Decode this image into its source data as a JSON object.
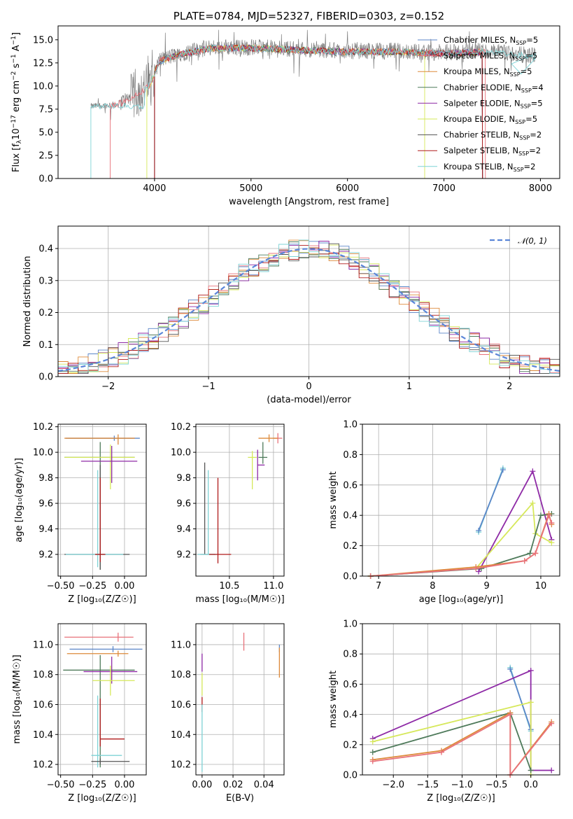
{
  "figure_title": "PLATE=0784, MJD=52327, FIBERID=0303, z=0.152",
  "colors": {
    "chabrier_miles": "#5b86c8",
    "salpeter_miles": "#e8717a",
    "kroupa_miles": "#dd8a3a",
    "chabrier_elodie": "#4e7a5a",
    "salpeter_elodie": "#8e2aa6",
    "kroupa_elodie": "#d6e85a",
    "chabrier_stelib": "#555555",
    "salpeter_stelib": "#b01a1a",
    "kroupa_stelib": "#7fd3d6",
    "data": "#808080",
    "normal": "#5b86d8"
  },
  "chart_data": [
    {
      "id": "spectrum",
      "type": "line",
      "title": "PLATE=0784, MJD=52327, FIBERID=0303, z=0.152",
      "xlabel": "wavelength [Angstrom, rest frame]",
      "ylabel_text": "Flux [f",
      "ylabel_sub": "λ",
      "ylabel_text2": "10",
      "ylabel_sup1": "−17",
      "ylabel_text3": " erg cm",
      "ylabel_sup2": "−2",
      "ylabel_text4": " s",
      "ylabel_sup3": "−1",
      "ylabel_text5": " A",
      "ylabel_sup4": "−1",
      "ylabel_text6": "]",
      "xlim": [
        3000,
        8200
      ],
      "ylim": [
        0,
        16.5
      ],
      "xticks": [
        4000,
        5000,
        6000,
        7000,
        8000
      ],
      "yticks": [
        0.0,
        2.5,
        5.0,
        7.5,
        10.0,
        12.5,
        15.0
      ],
      "ytick_labels": [
        "0.0",
        "2.5",
        "5.0",
        "7.5",
        "10.0",
        "12.5",
        "15.0"
      ],
      "grid": false,
      "legend": "right",
      "legend_entries": [
        {
          "label": "Chabrier MILES, N",
          "sub": "SSP",
          "eq": "=5",
          "color_key": "chabrier_miles"
        },
        {
          "label": "Salpeter MILES, N",
          "sub": "SSP",
          "eq": "=5",
          "color_key": "salpeter_miles"
        },
        {
          "label": "Kroupa MILES, N",
          "sub": "SSP",
          "eq": "=5",
          "color_key": "kroupa_miles"
        },
        {
          "label": "Chabrier ELODIE, N",
          "sub": "SSP",
          "eq": "=4",
          "color_key": "chabrier_elodie"
        },
        {
          "label": "Salpeter ELODIE, N",
          "sub": "SSP",
          "eq": "=5",
          "color_key": "salpeter_elodie"
        },
        {
          "label": "Kroupa ELODIE, N",
          "sub": "SSP",
          "eq": "=5",
          "color_key": "kroupa_elodie"
        },
        {
          "label": "Chabrier STELIB, N",
          "sub": "SSP",
          "eq": "=2",
          "color_key": "chabrier_stelib"
        },
        {
          "label": "Salpeter STELIB, N",
          "sub": "SSP",
          "eq": "=2",
          "color_key": "salpeter_stelib"
        },
        {
          "label": "Kroupa STELIB, N",
          "sub": "SSP",
          "eq": "=2",
          "color_key": "kroupa_stelib"
        }
      ],
      "data_range": [
        3340,
        7950
      ],
      "continuum": [
        [
          3340,
          7.8
        ],
        [
          3600,
          8.0
        ],
        [
          3800,
          9.0
        ],
        [
          3950,
          10.2
        ],
        [
          4050,
          12.8
        ],
        [
          4300,
          13.6
        ],
        [
          4600,
          14.2
        ],
        [
          5000,
          14.2
        ],
        [
          5500,
          14.0
        ],
        [
          6000,
          13.8
        ],
        [
          6500,
          13.8
        ],
        [
          7000,
          13.6
        ],
        [
          7400,
          13.8
        ],
        [
          7900,
          13.3
        ]
      ],
      "model_cutoffs": [
        {
          "color_key": "salpeter_miles",
          "start": 3540,
          "end": 7430
        },
        {
          "color_key": "kroupa_elodie",
          "start": 3920,
          "end": 6800
        },
        {
          "color_key": "kroupa_stelib",
          "start": 3340,
          "end": 7950
        }
      ]
    },
    {
      "id": "residual_hist",
      "type": "histogram",
      "xlabel": "(data-model)/error",
      "ylabel": "Normed distribution",
      "xlim": [
        -2.5,
        2.5
      ],
      "ylim": [
        0,
        0.47
      ],
      "xticks": [
        -2,
        -1,
        0,
        1,
        2
      ],
      "xtick_labels": [
        "−2",
        "−1",
        "0",
        "1",
        "2"
      ],
      "yticks": [
        0.0,
        0.1,
        0.2,
        0.3,
        0.4
      ],
      "ytick_labels": [
        "0.0",
        "0.1",
        "0.2",
        "0.3",
        "0.4"
      ],
      "grid": true,
      "legend": "top-right",
      "legend_label": "𝒩(0, 1)",
      "bin_width": 0.1,
      "bin_start": -2.5
    },
    {
      "id": "age_vs_Z",
      "type": "errorbar",
      "xlabel": "Z [log₁₀(Z/Z☉)]",
      "ylabel": "age  [log₁₀(age/yr)]",
      "xlim": [
        -0.52,
        0.17
      ],
      "ylim": [
        9.03,
        10.22
      ],
      "xticks": [
        -0.5,
        -0.25,
        0.0
      ],
      "xtick_labels": [
        "−0.50",
        "−0.25",
        "0.00"
      ],
      "yticks": [
        9.2,
        9.4,
        9.6,
        9.8,
        10.0,
        10.2
      ],
      "ytick_labels": [
        "9.2",
        "9.4",
        "9.6",
        "9.8",
        "10.0",
        "10.2"
      ],
      "grid": true,
      "points": [
        {
          "color_key": "chabrier_miles",
          "x": -0.08,
          "xerr": [
            0.38,
            0.2
          ],
          "y": 10.11,
          "yerr": [
            0.02,
            0.02
          ]
        },
        {
          "color_key": "kroupa_miles",
          "x": -0.05,
          "xerr": [
            0.42,
            0.13
          ],
          "y": 10.11,
          "yerr": [
            0.05,
            0.03
          ]
        },
        {
          "color_key": "chabrier_elodie",
          "x": -0.19,
          "xerr": [
            0.28,
            0.27
          ],
          "y": 9.96,
          "yerr": [
            0.88,
            0.12
          ]
        },
        {
          "color_key": "kroupa_elodie",
          "x": -0.11,
          "xerr": [
            0.36,
            0.19
          ],
          "y": 9.96,
          "yerr": [
            0.25,
            0.1
          ]
        },
        {
          "color_key": "salpeter_elodie",
          "x": -0.1,
          "xerr": [
            0.24,
            0.2
          ],
          "y": 9.93,
          "yerr": [
            0.17,
            0.12
          ]
        },
        {
          "color_key": "chabrier_stelib",
          "x": -0.19,
          "xerr": [
            0.28,
            0.23
          ],
          "y": 9.2,
          "yerr": [
            0.12,
            0.7
          ]
        },
        {
          "color_key": "kroupa_stelib",
          "x": -0.21,
          "xerr": [
            0.25,
            0.2
          ],
          "y": 9.2,
          "yerr": [
            0.1,
            0.66
          ]
        },
        {
          "color_key": "salpeter_stelib",
          "x": -0.19,
          "xerr": [
            0.04,
            0.04
          ],
          "y": 9.2,
          "yerr": [
            0.06,
            0.6
          ]
        }
      ]
    },
    {
      "id": "age_vs_mass",
      "type": "errorbar",
      "xlabel": "mass [log₁₀(M/M☉)]",
      "xlim": [
        10.12,
        11.12
      ],
      "ylim": [
        9.03,
        10.22
      ],
      "xticks": [
        10.5,
        11.0
      ],
      "xtick_labels": [
        "10.5",
        "11.0"
      ],
      "yticks": [
        9.2,
        9.4,
        9.6,
        9.8,
        10.0,
        10.2
      ],
      "ytick_labels": [
        "9.2",
        "9.4",
        "9.6",
        "9.8",
        "10.0",
        "10.2"
      ],
      "grid": true,
      "points": [
        {
          "color_key": "salpeter_miles",
          "x": 11.05,
          "xerr": [
            0.05,
            0.05
          ],
          "y": 10.11,
          "yerr": [
            0.04,
            0.04
          ]
        },
        {
          "color_key": "kroupa_miles",
          "x": 10.95,
          "xerr": [
            0.12,
            0.1
          ],
          "y": 10.11,
          "yerr": [
            0.03,
            0.03
          ]
        },
        {
          "color_key": "chabrier_elodie",
          "x": 10.88,
          "xerr": [
            0.05,
            0.05
          ],
          "y": 9.96,
          "yerr": [
            0.05,
            0.12
          ]
        },
        {
          "color_key": "kroupa_elodie",
          "x": 10.76,
          "xerr": [
            0.05,
            0.05
          ],
          "y": 9.96,
          "yerr": [
            0.25,
            0.05
          ]
        },
        {
          "color_key": "salpeter_elodie",
          "x": 10.82,
          "xerr": [
            0.0,
            0.08
          ],
          "y": 9.9,
          "yerr": [
            0.12,
            0.12
          ]
        },
        {
          "color_key": "chabrier_stelib",
          "x": 10.22,
          "xerr": [
            0.05,
            0.12
          ],
          "y": 9.2,
          "yerr": [
            0.0,
            0.72
          ]
        },
        {
          "color_key": "kroupa_stelib",
          "x": 10.26,
          "xerr": [
            0.12,
            0.1
          ],
          "y": 9.2,
          "yerr": [
            0.0,
            0.66
          ]
        },
        {
          "color_key": "salpeter_stelib",
          "x": 10.37,
          "xerr": [
            0.1,
            0.15
          ],
          "y": 9.2,
          "yerr": [
            0.07,
            0.6
          ]
        }
      ]
    },
    {
      "id": "massweight_vs_age",
      "type": "line",
      "xlabel": "age  [log₁₀(age/yr)]",
      "ylabel": "mass weight",
      "xlim": [
        6.7,
        10.35
      ],
      "ylim": [
        0,
        1
      ],
      "xticks": [
        7,
        8,
        9,
        10
      ],
      "xtick_labels": [
        "7",
        "8",
        "9",
        "10"
      ],
      "yticks": [
        0.0,
        0.2,
        0.4,
        0.6,
        0.8,
        1.0
      ],
      "ytick_labels": [
        "0.0",
        "0.2",
        "0.4",
        "0.6",
        "0.8",
        "1.0"
      ],
      "grid": true,
      "series": [
        {
          "color_key": "kroupa_stelib",
          "x": [
            8.85,
            9.3
          ],
          "y": [
            0.29,
            0.71
          ]
        },
        {
          "color_key": "chabrier_miles",
          "x": [
            8.85,
            9.3
          ],
          "y": [
            0.3,
            0.7
          ]
        },
        {
          "color_key": "salpeter_elodie",
          "x": [
            8.85,
            9.85,
            10.2
          ],
          "y": [
            0.03,
            0.69,
            0.24
          ]
        },
        {
          "color_key": "kroupa_elodie",
          "x": [
            6.85,
            8.8,
            9.85,
            9.9,
            10.2
          ],
          "y": [
            0.0,
            0.05,
            0.48,
            0.28,
            0.22
          ]
        },
        {
          "color_key": "chabrier_elodie",
          "x": [
            6.85,
            8.9,
            9.8,
            10.0,
            10.2
          ],
          "y": [
            0.0,
            0.05,
            0.15,
            0.4,
            0.41
          ]
        },
        {
          "color_key": "kroupa_miles",
          "x": [
            6.85,
            8.8,
            9.7,
            9.9,
            10.15,
            10.2
          ],
          "y": [
            0.0,
            0.06,
            0.1,
            0.15,
            0.41,
            0.34
          ]
        },
        {
          "color_key": "salpeter_miles",
          "x": [
            6.85,
            8.8,
            9.7,
            9.9,
            10.15,
            10.2
          ],
          "y": [
            0.0,
            0.05,
            0.1,
            0.15,
            0.4,
            0.35
          ]
        }
      ]
    },
    {
      "id": "mass_vs_Z",
      "type": "errorbar",
      "xlabel": "Z [log₁₀(Z/Z☉)]",
      "ylabel": "mass [log₁₀(M/M☉)]",
      "xlim": [
        -0.52,
        0.17
      ],
      "ylim": [
        10.13,
        11.14
      ],
      "xticks": [
        -0.5,
        -0.25,
        0.0
      ],
      "xtick_labels": [
        "−0.50",
        "−0.25",
        "0.00"
      ],
      "yticks": [
        10.2,
        10.4,
        10.6,
        10.8,
        11.0
      ],
      "ytick_labels": [
        "10.2",
        "10.4",
        "10.6",
        "10.8",
        "11.0"
      ],
      "grid": true,
      "points": [
        {
          "color_key": "salpeter_miles",
          "x": -0.05,
          "xerr": [
            0.42,
            0.12
          ],
          "y": 11.05,
          "yerr": [
            0.03,
            0.03
          ]
        },
        {
          "color_key": "chabrier_miles",
          "x": -0.09,
          "xerr": [
            0.34,
            0.23
          ],
          "y": 10.97,
          "yerr": [
            0.02,
            0.02
          ]
        },
        {
          "color_key": "kroupa_miles",
          "x": -0.05,
          "xerr": [
            0.4,
            0.08
          ],
          "y": 10.94,
          "yerr": [
            0.02,
            0.02
          ]
        },
        {
          "color_key": "chabrier_elodie",
          "x": -0.19,
          "xerr": [
            0.29,
            0.27
          ],
          "y": 10.83,
          "yerr": [
            0.65,
            0.1
          ]
        },
        {
          "color_key": "salpeter_elodie",
          "x": -0.1,
          "xerr": [
            0.22,
            0.2
          ],
          "y": 10.82,
          "yerr": [
            0.08,
            0.1
          ]
        },
        {
          "color_key": "kroupa_elodie",
          "x": -0.11,
          "xerr": [
            0.14,
            0.19
          ],
          "y": 10.76,
          "yerr": [
            0.1,
            0.1
          ]
        },
        {
          "color_key": "salpeter_stelib",
          "x": -0.19,
          "xerr": [
            0.0,
            0.19
          ],
          "y": 10.37,
          "yerr": [
            0.05,
            0.27
          ]
        },
        {
          "color_key": "kroupa_stelib",
          "x": -0.21,
          "xerr": [
            0.05,
            0.19
          ],
          "y": 10.26,
          "yerr": [
            0.08,
            0.4
          ]
        },
        {
          "color_key": "chabrier_stelib",
          "x": -0.19,
          "xerr": [
            0.07,
            0.23
          ],
          "y": 10.22,
          "yerr": [
            0.02,
            0.02
          ]
        }
      ]
    },
    {
      "id": "mass_vs_ebv",
      "type": "errorbar",
      "xlabel": "E(B-V)",
      "xlim": [
        -0.004,
        0.053
      ],
      "ylim": [
        10.13,
        11.14
      ],
      "xticks": [
        0.0,
        0.02,
        0.04
      ],
      "xtick_labels": [
        "0.00",
        "0.02",
        "0.04"
      ],
      "yticks": [
        10.2,
        10.4,
        10.6,
        10.8,
        11.0
      ],
      "ytick_labels": [
        "10.2",
        "10.4",
        "10.6",
        "10.8",
        "11.0"
      ],
      "grid": true,
      "points": [
        {
          "color_key": "salpeter_miles",
          "x": 0.027,
          "xerr": [
            0,
            0
          ],
          "y": 11.01,
          "yerr": [
            0.05,
            0.07
          ]
        },
        {
          "color_key": "chabrier_miles",
          "x": 0.05,
          "xerr": [
            0,
            0
          ],
          "y": 10.97,
          "yerr": [
            0.02,
            0.03
          ]
        },
        {
          "color_key": "kroupa_miles",
          "x": 0.05,
          "xerr": [
            0,
            0
          ],
          "y": 10.88,
          "yerr": [
            0.1,
            0.1
          ]
        },
        {
          "color_key": "salpeter_elodie",
          "x": 0.0,
          "xerr": [
            0,
            0
          ],
          "y": 10.87,
          "yerr": [
            0.05,
            0.07
          ]
        },
        {
          "color_key": "kroupa_elodie",
          "x": 0.0,
          "xerr": [
            0,
            0
          ],
          "y": 10.76,
          "yerr": [
            0.1,
            0.05
          ]
        },
        {
          "color_key": "salpeter_stelib",
          "x": 0.0,
          "xerr": [
            0,
            0
          ],
          "y": 10.6,
          "yerr": [
            0.05,
            0.05
          ]
        },
        {
          "color_key": "kroupa_stelib",
          "x": 0.0,
          "xerr": [
            0,
            0
          ],
          "y": 10.4,
          "yerr": [
            0.25,
            0.2
          ]
        }
      ]
    },
    {
      "id": "massweight_vs_Z",
      "type": "line",
      "xlabel": "Z [log₁₀(Z/Z☉)]",
      "ylabel": "mass weight",
      "xlim": [
        -2.45,
        0.42
      ],
      "ylim": [
        0,
        1
      ],
      "xticks": [
        -2.0,
        -1.5,
        -1.0,
        -0.5,
        0.0
      ],
      "xtick_labels": [
        "−2.0",
        "−1.5",
        "−1.0",
        "−0.5",
        "0.0"
      ],
      "yticks": [
        0.0,
        0.2,
        0.4,
        0.6,
        0.8,
        1.0
      ],
      "ytick_labels": [
        "0.0",
        "0.2",
        "0.4",
        "0.6",
        "0.8",
        "1.0"
      ],
      "grid": true,
      "series": [
        {
          "color_key": "kroupa_stelib",
          "x": [
            -0.3,
            0.0
          ],
          "y": [
            0.71,
            0.29
          ]
        },
        {
          "color_key": "chabrier_miles",
          "x": [
            -0.3,
            0.0
          ],
          "y": [
            0.7,
            0.3
          ]
        },
        {
          "color_key": "salpeter_elodie",
          "x": [
            -2.3,
            0.0,
            0.0,
            0.3
          ],
          "y": [
            0.24,
            0.69,
            0.03,
            0.03
          ]
        },
        {
          "color_key": "kroupa_elodie",
          "x": [
            -2.3,
            0.0,
            0.0
          ],
          "y": [
            0.22,
            0.48,
            0.0
          ]
        },
        {
          "color_key": "chabrier_elodie",
          "x": [
            -2.3,
            -0.3,
            0.0
          ],
          "y": [
            0.15,
            0.41,
            0.03
          ]
        },
        {
          "color_key": "kroupa_miles",
          "x": [
            -2.3,
            -1.3,
            -0.3,
            -0.3,
            0.3
          ],
          "y": [
            0.1,
            0.16,
            0.41,
            0.0,
            0.35
          ]
        },
        {
          "color_key": "salpeter_miles",
          "x": [
            -2.3,
            -1.3,
            -0.3,
            -0.3,
            0.3
          ],
          "y": [
            0.09,
            0.15,
            0.4,
            0.0,
            0.34
          ]
        }
      ]
    }
  ]
}
